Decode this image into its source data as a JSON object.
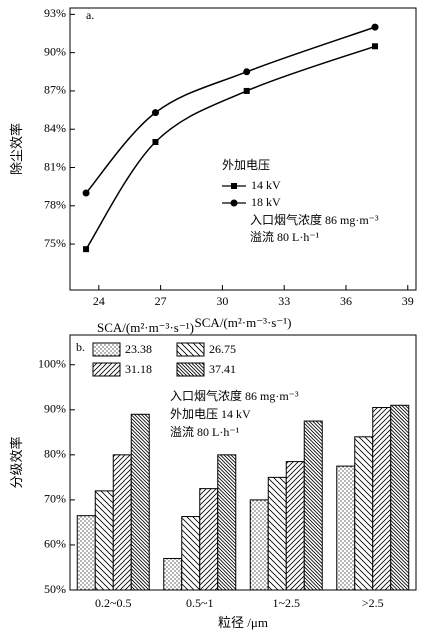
{
  "chart_data": [
    {
      "type": "line",
      "panel_label": "a.",
      "xlabel": "SCA/(m²·m⁻³·s⁻¹)",
      "ylabel": "除尘效率",
      "legend_title": "外加电压",
      "annotations": [
        "入口烟气浓度 86 mg·m⁻³",
        "溢流 80 L·h⁻¹"
      ],
      "x": [
        23.38,
        26.75,
        31.18,
        37.41
      ],
      "series": [
        {
          "name": "14 kV",
          "color": "#000000",
          "marker": "square",
          "values": [
            74.6,
            83.0,
            87.0,
            90.5
          ]
        },
        {
          "name": "18 kV",
          "color": "#000000",
          "marker": "diamond",
          "values": [
            79.0,
            85.3,
            88.5,
            92.0
          ]
        }
      ],
      "xlim": [
        22.6,
        39.4
      ],
      "xticks": [
        24,
        27,
        30,
        33,
        36,
        39
      ],
      "ylim": [
        71.4,
        93.5
      ],
      "yticks": [
        {
          "value": 75,
          "label": "75%"
        },
        {
          "value": 78,
          "label": "78%"
        },
        {
          "value": 81,
          "label": "81%"
        },
        {
          "value": 84,
          "label": "84%"
        },
        {
          "value": 87,
          "label": "87%"
        },
        {
          "value": 90,
          "label": "90%"
        },
        {
          "value": 93,
          "label": "93%"
        }
      ]
    },
    {
      "type": "bar",
      "panel_label": "b.",
      "xlabel": "粒径 /μm",
      "ylabel": "分级效率",
      "legend_title": "SCA/(m²·m⁻³·s⁻¹)",
      "annotations": [
        "入口烟气浓度 86 mg·m⁻³",
        "外加电压 14 kV",
        "溢流 80 L·h⁻¹"
      ],
      "categories": [
        "0.2~0.5",
        "0.5~1",
        "1~2.5",
        ">2.5"
      ],
      "series": [
        {
          "name": "23.38",
          "color": "#000000",
          "hatch": "dots",
          "values": [
            66.5,
            57,
            70,
            77.5
          ]
        },
        {
          "name": "26.75",
          "color": "#000000",
          "hatch": "backslash",
          "values": [
            72,
            66.3,
            75,
            84
          ]
        },
        {
          "name": "31.18",
          "color": "#000000",
          "hatch": "slash",
          "values": [
            80,
            72.5,
            78.5,
            90.5
          ]
        },
        {
          "name": "37.41",
          "color": "#000000",
          "hatch": "dense-backslash",
          "values": [
            89,
            80,
            87.5,
            91
          ]
        }
      ],
      "ylim": [
        50,
        106.6
      ],
      "yticks": [
        {
          "value": 50,
          "label": "50%"
        },
        {
          "value": 60,
          "label": "60%"
        },
        {
          "value": 70,
          "label": "70%"
        },
        {
          "value": 80,
          "label": "80%"
        },
        {
          "value": 90,
          "label": "90%"
        },
        {
          "value": 100,
          "label": "100%"
        }
      ]
    }
  ]
}
